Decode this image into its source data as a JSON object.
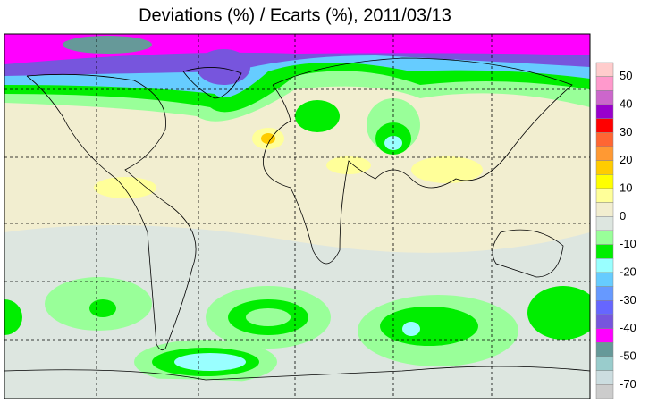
{
  "title": "Deviations (%) / Ecarts (%), 2011/03/13",
  "legend": {
    "labels": [
      50,
      40,
      30,
      20,
      10,
      0,
      -10,
      -20,
      -30,
      -40,
      -50,
      -70
    ],
    "colors": [
      "#ffcccc",
      "#ff99cc",
      "#cc66cc",
      "#9900cc",
      "#ff0000",
      "#ff6633",
      "#ff9933",
      "#ffcc00",
      "#ffff00",
      "#ffff99",
      "#f2eed0",
      "#dde6e0",
      "#99ff99",
      "#00ee00",
      "#99ffff",
      "#66ccff",
      "#6699ff",
      "#6666ff",
      "#7755dd",
      "#ff00ff",
      "#669999",
      "#99cccc",
      "#ccdde0",
      "#cccccc"
    ]
  }
}
